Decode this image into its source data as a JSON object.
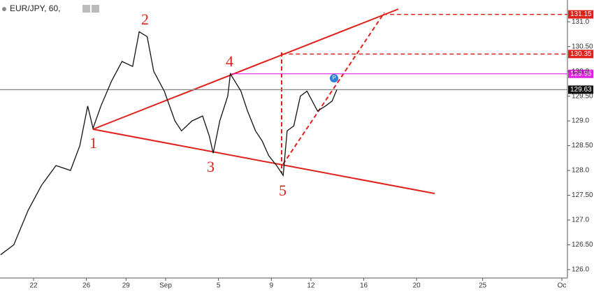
{
  "chart_data": {
    "type": "line",
    "title": "EUR/JPY, 60,",
    "x": [
      19.5,
      20.5,
      21.6,
      22.6,
      23.7,
      24.8,
      25.5,
      26.1,
      26.5,
      27.1,
      27.9,
      28.7,
      29.5,
      30.0,
      30.6,
      31.1,
      31.9,
      32.7,
      33.2,
      34.0,
      34.8,
      35.3,
      35.6,
      36.1,
      36.7,
      36.9,
      37.7,
      38.2,
      38.8,
      39.3,
      39.8,
      40.4,
      40.9,
      41.2,
      41.7,
      42.2,
      42.7,
      43.5,
      44.1,
      44.6,
      44.96
    ],
    "series": [
      {
        "name": "EUR/JPY",
        "color": "#111111",
        "values": [
          126.3,
          126.5,
          127.2,
          127.7,
          128.1,
          128.0,
          128.5,
          129.3,
          128.85,
          129.3,
          129.8,
          130.2,
          130.1,
          130.8,
          130.7,
          130.0,
          129.6,
          129.0,
          128.8,
          129.0,
          129.1,
          128.7,
          128.35,
          129.0,
          129.5,
          129.95,
          129.6,
          129.2,
          128.8,
          128.6,
          128.3,
          128.1,
          127.9,
          128.8,
          128.9,
          129.5,
          129.6,
          129.2,
          129.3,
          129.4,
          129.63
        ]
      }
    ],
    "xlim": [
      19.46,
      62.42
    ],
    "xticks": [
      {
        "value": 22,
        "label": "22"
      },
      {
        "value": 26,
        "label": "26"
      },
      {
        "value": 29,
        "label": "29"
      },
      {
        "value": 32,
        "label": "Sep"
      },
      {
        "value": 36,
        "label": "5"
      },
      {
        "value": 40,
        "label": "9"
      },
      {
        "value": 43,
        "label": "12"
      },
      {
        "value": 47,
        "label": "16"
      },
      {
        "value": 51,
        "label": "20"
      },
      {
        "value": 56,
        "label": "25"
      },
      {
        "value": 62,
        "label": "Oc"
      }
    ],
    "ylim": [
      125.83,
      131.44
    ],
    "yticks": [
      {
        "value": 126,
        "label": "126.0"
      },
      {
        "value": 126.5,
        "label": "126.50"
      },
      {
        "value": 127,
        "label": "127.0"
      },
      {
        "value": 127.5,
        "label": "127.50"
      },
      {
        "value": 128,
        "label": "128.0"
      },
      {
        "value": 128.5,
        "label": "128.50"
      },
      {
        "value": 129,
        "label": "129.0"
      },
      {
        "value": 129.5,
        "label": "129.50"
      },
      {
        "value": 130,
        "label": "130.0"
      },
      {
        "value": 130.5,
        "label": "130.50"
      },
      {
        "value": 131,
        "label": "131.0"
      }
    ],
    "levels": [
      {
        "value": 131.15,
        "color": "#e0201b",
        "style": "dashed",
        "x_from": 48.46
      },
      {
        "value": 130.35,
        "color": "#e0201b",
        "style": "dashed",
        "x_from": 40.8
      },
      {
        "value": 129.95,
        "color": "#e020e0",
        "style": "solid",
        "x_from": 36.9
      },
      {
        "value": 129.63,
        "color": "#888888",
        "style": "solid",
        "x_from": 19.46
      }
    ],
    "waves": [
      "1",
      "2",
      "3",
      "4",
      "5"
    ]
  }
}
